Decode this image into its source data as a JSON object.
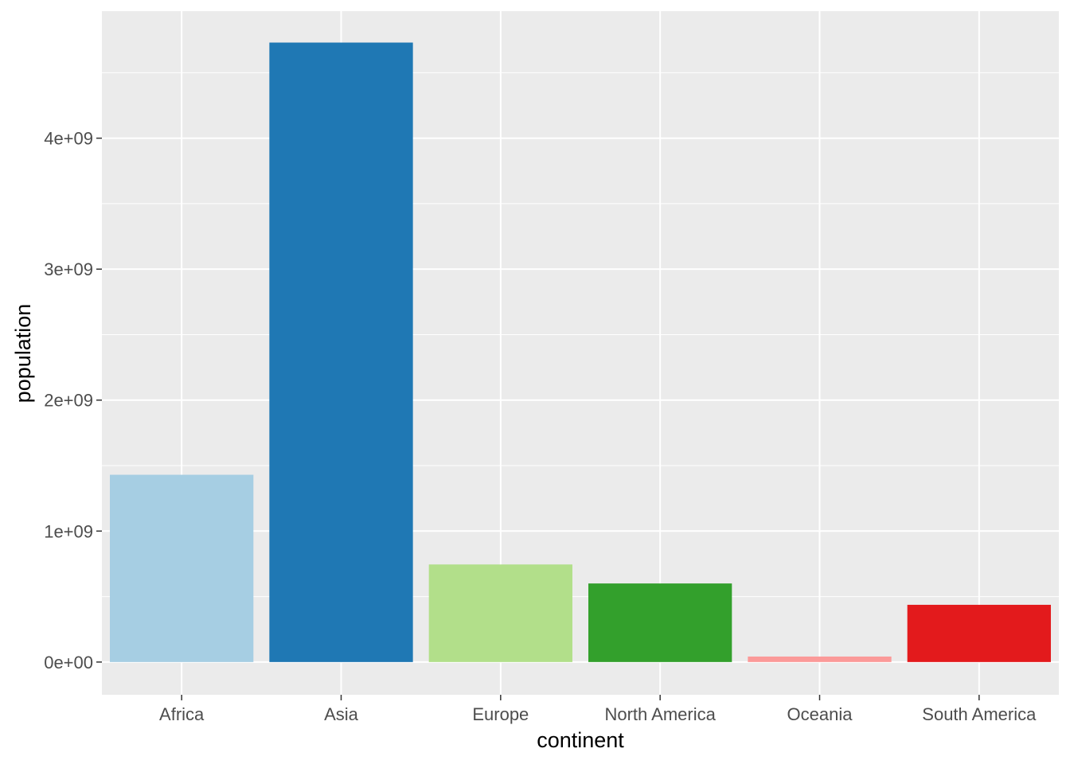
{
  "chart_data": {
    "type": "bar",
    "xlabel": "continent",
    "ylabel": "population",
    "categories": [
      "Africa",
      "Asia",
      "Europe",
      "North America",
      "Oceania",
      "South America"
    ],
    "values": [
      1430000000,
      4730000000,
      745000000,
      600000000,
      42000000,
      437000000
    ],
    "colors": [
      "#A6CEE3",
      "#1F78B4",
      "#B2DF8A",
      "#33A02C",
      "#FB9A99",
      "#E31A1C"
    ],
    "yticks": [
      0,
      1000000000,
      2000000000,
      3000000000,
      4000000000
    ],
    "ytick_labels": [
      "0e+00",
      "1e+09",
      "2e+09",
      "3e+09",
      "4e+09"
    ],
    "ylim": [
      -250000000,
      4970000000
    ],
    "grid": true,
    "panel_background": "#EBEBEB",
    "legend": "none"
  }
}
